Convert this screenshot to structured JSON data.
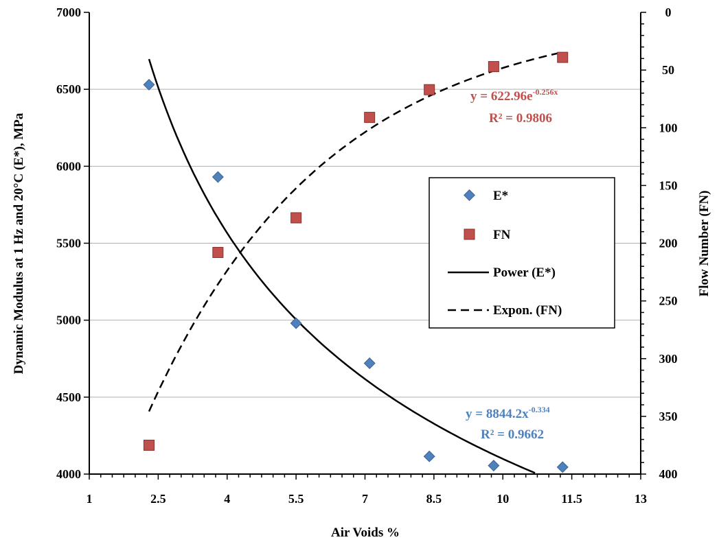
{
  "chart_data": {
    "type": "scatter",
    "xlabel": "Air Voids %",
    "ylabel": "Dynamic Modulus at 1 Hz and 20°C (E*), MPa",
    "y2label": "Flow Number (FN)",
    "xlim": [
      1,
      13
    ],
    "ylim": [
      4000,
      7000
    ],
    "y2lim": [
      400,
      0
    ],
    "y2_reversed": true,
    "x_ticks": [
      "1",
      "2.5",
      "4",
      "5.5",
      "7",
      "8.5",
      "10",
      "11.5",
      "13"
    ],
    "x_tick_values": [
      1,
      2.5,
      4,
      5.5,
      7,
      8.5,
      10,
      11.5,
      13
    ],
    "y_ticks": [
      "4000",
      "4500",
      "5000",
      "5500",
      "6000",
      "6500",
      "7000"
    ],
    "y_tick_values": [
      4000,
      4500,
      5000,
      5500,
      6000,
      6500,
      7000
    ],
    "y2_ticks": [
      "0",
      "50",
      "100",
      "150",
      "200",
      "250",
      "300",
      "350",
      "400"
    ],
    "y2_tick_values": [
      0,
      50,
      100,
      150,
      200,
      250,
      300,
      350,
      400
    ],
    "grid": "horizontal",
    "legend_position": "right-middle",
    "series": [
      {
        "name": "E*",
        "axis": "left",
        "marker": "diamond",
        "color": "#4F81BD",
        "x": [
          2.3,
          3.8,
          5.5,
          7.1,
          8.4,
          9.8,
          11.3
        ],
        "y": [
          6530,
          5930,
          4980,
          4720,
          4115,
          4055,
          4045
        ]
      },
      {
        "name": "FN",
        "axis": "right",
        "marker": "square",
        "color": "#C0504D",
        "x": [
          2.3,
          3.8,
          5.5,
          7.1,
          8.4,
          9.8,
          11.3
        ],
        "y": [
          375,
          208,
          178,
          91,
          67,
          47,
          39
        ]
      }
    ],
    "trendlines": [
      {
        "name": "Power (E*)",
        "axis": "left",
        "style": "solid",
        "color": "#000000",
        "model": "power",
        "a": 8844.2,
        "b": -0.334,
        "x_range": [
          2.3,
          11.3
        ],
        "equation_base": "y = 8844.2x",
        "equation_exp": "-0.334",
        "r2": "R² = 0.9662",
        "label_color": "#4F81BD"
      },
      {
        "name": "Expon. (FN)",
        "axis": "right",
        "style": "dashed",
        "color": "#000000",
        "model": "exponential",
        "a": 622.96,
        "b": -0.256,
        "x_range": [
          2.3,
          11.3
        ],
        "equation_base": "y = 622.96e",
        "equation_exp": "-0.256x",
        "r2": "R² = 0.9806",
        "label_color": "#C0504D"
      }
    ],
    "legend": [
      "E*",
      "FN",
      "Power (E*)",
      "Expon. (FN)"
    ]
  }
}
